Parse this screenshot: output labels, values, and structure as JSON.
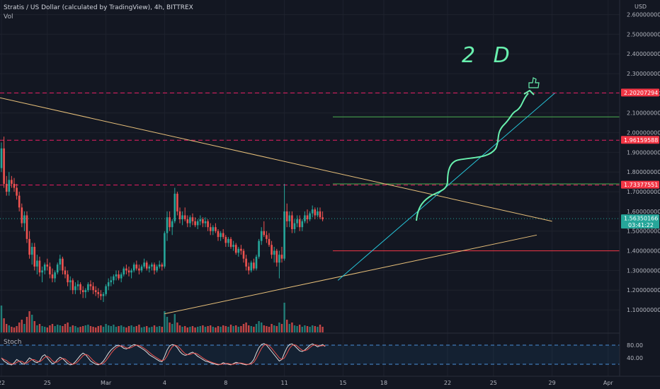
{
  "header": {
    "title": "Stratis / US Dollar (calculated by TradingView), 4h, BITTREX",
    "vol_label": "Vol",
    "stoch_label": "Stoch",
    "currency": "USD"
  },
  "chart_data": {
    "type": "candlestick",
    "y_axis": {
      "min": 1.05,
      "max": 2.62,
      "ticks": [
        "2.60000000",
        "2.50000000",
        "2.40000000",
        "2.30000000",
        "2.20000000",
        "2.10000000",
        "2.00000000",
        "1.90000000",
        "1.80000000",
        "1.70000000",
        "1.60000000",
        "1.50000000",
        "1.40000000",
        "1.30000000",
        "1.20000000",
        "1.10000000"
      ],
      "tick_values": [
        2.6,
        2.5,
        2.4,
        2.3,
        2.2,
        2.1,
        2.0,
        1.9,
        1.8,
        1.7,
        1.6,
        1.5,
        1.4,
        1.3,
        1.2,
        1.1
      ]
    },
    "x_axis": {
      "ticks": [
        "22",
        "25",
        "Mar",
        "4",
        "8",
        "11",
        "15",
        "18",
        "22",
        "25",
        "29",
        "Apr"
      ],
      "tick_positions": [
        0,
        18,
        41,
        64,
        88,
        111,
        134,
        150,
        175,
        193,
        216,
        238
      ]
    },
    "price_tags": [
      {
        "value": 2.20207294,
        "label": "2.20207294",
        "color": "#f23645"
      },
      {
        "value": 1.96159588,
        "label": "1.96159588",
        "color": "#f23645"
      },
      {
        "value": 1.73377551,
        "label": "1.73377551",
        "color": "#f23645"
      },
      {
        "value": 1.5635,
        "label": "1.56350166",
        "sub_label": "03:41:22",
        "color": "#26a69a"
      }
    ],
    "horizontal_levels": [
      {
        "value": 2.20207294,
        "style": "dashed",
        "color": "#e91e63"
      },
      {
        "value": 1.96159588,
        "style": "dashed",
        "color": "#e91e63"
      },
      {
        "value": 1.73377551,
        "style": "dashed",
        "color": "#e91e63"
      },
      {
        "value": 1.5635,
        "style": "dotted",
        "color": "#26a69a"
      },
      {
        "value": 2.08,
        "style": "solid",
        "color": "#4caf50",
        "from_index": 130
      },
      {
        "value": 1.74,
        "style": "solid",
        "color": "#4caf50",
        "from_index": 130
      },
      {
        "value": 1.4,
        "style": "solid",
        "color": "#f23645",
        "from_index": 130
      }
    ],
    "trendlines": [
      {
        "from": [
          -5,
          2.19
        ],
        "to": [
          216,
          1.55
        ],
        "color": "#e8c07a"
      },
      {
        "from": [
          64,
          1.08
        ],
        "to": [
          210,
          1.48
        ],
        "color": "#e8c07a"
      },
      {
        "from": [
          132,
          1.25
        ],
        "to": [
          217,
          2.2
        ],
        "color": "#26c6da"
      }
    ],
    "annotation": {
      "text": "2 D",
      "color": "#69f0ae"
    },
    "stoch_axis": {
      "ticks": [
        "80.00",
        "40.00"
      ],
      "tick_values": [
        80,
        40
      ],
      "band_upper": 80,
      "band_lower": 20
    },
    "candles": [
      [
        1.82,
        1.95,
        1.8,
        1.92
      ],
      [
        1.92,
        1.98,
        1.72,
        1.74
      ],
      [
        1.74,
        1.78,
        1.68,
        1.7
      ],
      [
        1.7,
        1.8,
        1.68,
        1.76
      ],
      [
        1.76,
        1.78,
        1.72,
        1.74
      ],
      [
        1.74,
        1.77,
        1.7,
        1.72
      ],
      [
        1.72,
        1.74,
        1.66,
        1.68
      ],
      [
        1.68,
        1.7,
        1.6,
        1.62
      ],
      [
        1.62,
        1.64,
        1.52,
        1.54
      ],
      [
        1.54,
        1.6,
        1.5,
        1.58
      ],
      [
        1.58,
        1.6,
        1.44,
        1.46
      ],
      [
        1.46,
        1.5,
        1.36,
        1.38
      ],
      [
        1.38,
        1.44,
        1.33,
        1.42
      ],
      [
        1.42,
        1.44,
        1.3,
        1.32
      ],
      [
        1.32,
        1.38,
        1.28,
        1.35
      ],
      [
        1.35,
        1.37,
        1.27,
        1.29
      ],
      [
        1.29,
        1.32,
        1.24,
        1.3
      ],
      [
        1.3,
        1.34,
        1.28,
        1.33
      ],
      [
        1.33,
        1.36,
        1.3,
        1.32
      ],
      [
        1.32,
        1.34,
        1.26,
        1.28
      ],
      [
        1.28,
        1.31,
        1.24,
        1.26
      ],
      [
        1.26,
        1.3,
        1.24,
        1.29
      ],
      [
        1.29,
        1.34,
        1.28,
        1.33
      ],
      [
        1.33,
        1.38,
        1.3,
        1.36
      ],
      [
        1.36,
        1.37,
        1.28,
        1.3
      ],
      [
        1.3,
        1.32,
        1.26,
        1.28
      ],
      [
        1.28,
        1.3,
        1.22,
        1.24
      ],
      [
        1.24,
        1.27,
        1.2,
        1.25
      ],
      [
        1.25,
        1.26,
        1.18,
        1.2
      ],
      [
        1.2,
        1.24,
        1.18,
        1.22
      ],
      [
        1.22,
        1.25,
        1.2,
        1.23
      ],
      [
        1.23,
        1.24,
        1.18,
        1.2
      ],
      [
        1.2,
        1.22,
        1.16,
        1.19
      ],
      [
        1.19,
        1.21,
        1.16,
        1.2
      ],
      [
        1.2,
        1.24,
        1.19,
        1.23
      ],
      [
        1.23,
        1.25,
        1.2,
        1.22
      ],
      [
        1.22,
        1.24,
        1.18,
        1.2
      ],
      [
        1.2,
        1.22,
        1.17,
        1.19
      ],
      [
        1.19,
        1.21,
        1.16,
        1.18
      ],
      [
        1.18,
        1.2,
        1.15,
        1.17
      ],
      [
        1.17,
        1.19,
        1.14,
        1.18
      ],
      [
        1.18,
        1.23,
        1.17,
        1.22
      ],
      [
        1.22,
        1.26,
        1.2,
        1.24
      ],
      [
        1.24,
        1.27,
        1.22,
        1.25
      ],
      [
        1.25,
        1.28,
        1.23,
        1.27
      ],
      [
        1.27,
        1.3,
        1.25,
        1.28
      ],
      [
        1.28,
        1.3,
        1.25,
        1.26
      ],
      [
        1.26,
        1.29,
        1.24,
        1.28
      ],
      [
        1.28,
        1.32,
        1.27,
        1.31
      ],
      [
        1.31,
        1.33,
        1.28,
        1.3
      ],
      [
        1.3,
        1.32,
        1.27,
        1.29
      ],
      [
        1.29,
        1.31,
        1.26,
        1.3
      ],
      [
        1.3,
        1.34,
        1.29,
        1.33
      ],
      [
        1.33,
        1.35,
        1.3,
        1.31
      ],
      [
        1.31,
        1.33,
        1.28,
        1.3
      ],
      [
        1.3,
        1.33,
        1.29,
        1.32
      ],
      [
        1.32,
        1.36,
        1.31,
        1.34
      ],
      [
        1.34,
        1.35,
        1.3,
        1.31
      ],
      [
        1.31,
        1.33,
        1.29,
        1.32
      ],
      [
        1.32,
        1.34,
        1.3,
        1.33
      ],
      [
        1.33,
        1.34,
        1.28,
        1.3
      ],
      [
        1.3,
        1.33,
        1.29,
        1.32
      ],
      [
        1.32,
        1.35,
        1.31,
        1.33
      ],
      [
        1.33,
        1.34,
        1.3,
        1.32
      ],
      [
        1.32,
        1.5,
        1.31,
        1.49
      ],
      [
        1.49,
        1.6,
        1.45,
        1.57
      ],
      [
        1.57,
        1.6,
        1.5,
        1.52
      ],
      [
        1.52,
        1.56,
        1.48,
        1.55
      ],
      [
        1.55,
        1.72,
        1.54,
        1.69
      ],
      [
        1.69,
        1.7,
        1.58,
        1.6
      ],
      [
        1.6,
        1.62,
        1.54,
        1.56
      ],
      [
        1.56,
        1.6,
        1.53,
        1.58
      ],
      [
        1.58,
        1.62,
        1.55,
        1.56
      ],
      [
        1.56,
        1.58,
        1.52,
        1.54
      ],
      [
        1.54,
        1.58,
        1.52,
        1.57
      ],
      [
        1.57,
        1.59,
        1.53,
        1.55
      ],
      [
        1.55,
        1.57,
        1.52,
        1.53
      ],
      [
        1.53,
        1.56,
        1.51,
        1.55
      ],
      [
        1.55,
        1.58,
        1.53,
        1.56
      ],
      [
        1.56,
        1.57,
        1.52,
        1.54
      ],
      [
        1.54,
        1.57,
        1.52,
        1.55
      ],
      [
        1.55,
        1.56,
        1.5,
        1.52
      ],
      [
        1.52,
        1.54,
        1.48,
        1.5
      ],
      [
        1.5,
        1.53,
        1.48,
        1.52
      ],
      [
        1.52,
        1.54,
        1.49,
        1.5
      ],
      [
        1.5,
        1.51,
        1.45,
        1.47
      ],
      [
        1.47,
        1.5,
        1.45,
        1.49
      ],
      [
        1.49,
        1.51,
        1.46,
        1.47
      ],
      [
        1.47,
        1.48,
        1.42,
        1.44
      ],
      [
        1.44,
        1.47,
        1.42,
        1.46
      ],
      [
        1.46,
        1.47,
        1.41,
        1.42
      ],
      [
        1.42,
        1.45,
        1.4,
        1.43
      ],
      [
        1.43,
        1.44,
        1.38,
        1.39
      ],
      [
        1.39,
        1.42,
        1.37,
        1.41
      ],
      [
        1.41,
        1.43,
        1.38,
        1.4
      ],
      [
        1.4,
        1.41,
        1.34,
        1.36
      ],
      [
        1.36,
        1.38,
        1.3,
        1.32
      ],
      [
        1.32,
        1.34,
        1.28,
        1.3
      ],
      [
        1.3,
        1.35,
        1.29,
        1.34
      ],
      [
        1.34,
        1.36,
        1.3,
        1.31
      ],
      [
        1.31,
        1.38,
        1.3,
        1.37
      ],
      [
        1.37,
        1.46,
        1.36,
        1.45
      ],
      [
        1.45,
        1.52,
        1.43,
        1.5
      ],
      [
        1.5,
        1.55,
        1.47,
        1.48
      ],
      [
        1.48,
        1.5,
        1.44,
        1.46
      ],
      [
        1.46,
        1.49,
        1.42,
        1.43
      ],
      [
        1.43,
        1.45,
        1.36,
        1.38
      ],
      [
        1.38,
        1.42,
        1.34,
        1.4
      ],
      [
        1.4,
        1.41,
        1.32,
        1.34
      ],
      [
        1.34,
        1.4,
        1.26,
        1.38
      ],
      [
        1.38,
        1.42,
        1.34,
        1.36
      ],
      [
        1.36,
        1.74,
        1.35,
        1.6
      ],
      [
        1.6,
        1.64,
        1.52,
        1.55
      ],
      [
        1.55,
        1.6,
        1.52,
        1.58
      ],
      [
        1.58,
        1.6,
        1.49,
        1.51
      ],
      [
        1.51,
        1.56,
        1.49,
        1.54
      ],
      [
        1.54,
        1.58,
        1.52,
        1.56
      ],
      [
        1.56,
        1.58,
        1.5,
        1.52
      ],
      [
        1.52,
        1.56,
        1.5,
        1.55
      ],
      [
        1.55,
        1.6,
        1.54,
        1.58
      ],
      [
        1.58,
        1.61,
        1.54,
        1.56
      ],
      [
        1.56,
        1.6,
        1.55,
        1.59
      ],
      [
        1.59,
        1.63,
        1.57,
        1.61
      ],
      [
        1.61,
        1.62,
        1.56,
        1.58
      ],
      [
        1.58,
        1.62,
        1.57,
        1.6
      ],
      [
        1.6,
        1.62,
        1.56,
        1.57
      ],
      [
        1.57,
        1.6,
        1.55,
        1.56
      ]
    ],
    "volume": [
      38,
      20,
      12,
      10,
      8,
      7,
      9,
      14,
      18,
      12,
      22,
      30,
      25,
      16,
      10,
      12,
      9,
      8,
      7,
      10,
      12,
      9,
      11,
      10,
      9,
      12,
      14,
      8,
      10,
      9,
      7,
      8,
      9,
      10,
      11,
      9,
      8,
      7,
      9,
      10,
      8,
      12,
      10,
      9,
      11,
      8,
      9,
      10,
      8,
      7,
      9,
      10,
      8,
      9,
      11,
      7,
      8,
      9,
      7,
      8,
      10,
      8,
      9,
      8,
      30,
      22,
      14,
      12,
      26,
      14,
      10,
      8,
      9,
      7,
      8,
      9,
      7,
      8,
      9,
      10,
      8,
      9,
      10,
      8,
      7,
      9,
      8,
      10,
      9,
      8,
      11,
      9,
      10,
      8,
      9,
      12,
      14,
      10,
      9,
      8,
      12,
      16,
      14,
      10,
      9,
      8,
      12,
      10,
      9,
      14,
      12,
      42,
      18,
      12,
      14,
      10,
      9,
      11,
      8,
      10,
      9,
      8,
      10,
      9,
      8,
      11,
      8,
      7
    ],
    "stoch": [
      40,
      30,
      25,
      20,
      18,
      25,
      35,
      30,
      22,
      20,
      30,
      40,
      35,
      28,
      25,
      30,
      45,
      50,
      40,
      30,
      22,
      25,
      35,
      42,
      38,
      30,
      22,
      18,
      20,
      28,
      38,
      48,
      55,
      50,
      40,
      30,
      25,
      20,
      18,
      22,
      30,
      42,
      55,
      65,
      72,
      78,
      80,
      76,
      70,
      68,
      72,
      78,
      82,
      80,
      75,
      70,
      65,
      58,
      50,
      45,
      40,
      35,
      30,
      28,
      45,
      65,
      78,
      82,
      80,
      72,
      60,
      52,
      48,
      50,
      55,
      58,
      52,
      45,
      40,
      35,
      30,
      28,
      25,
      22,
      20,
      18,
      20,
      25,
      22,
      20,
      18,
      22,
      26,
      24,
      22,
      20,
      18,
      20,
      25,
      35,
      55,
      72,
      82,
      85,
      80,
      70,
      60,
      50,
      40,
      30,
      35,
      55,
      72,
      82,
      84,
      78,
      70,
      62,
      60,
      65,
      72,
      80,
      84,
      80,
      75,
      78,
      82,
      76
    ]
  }
}
